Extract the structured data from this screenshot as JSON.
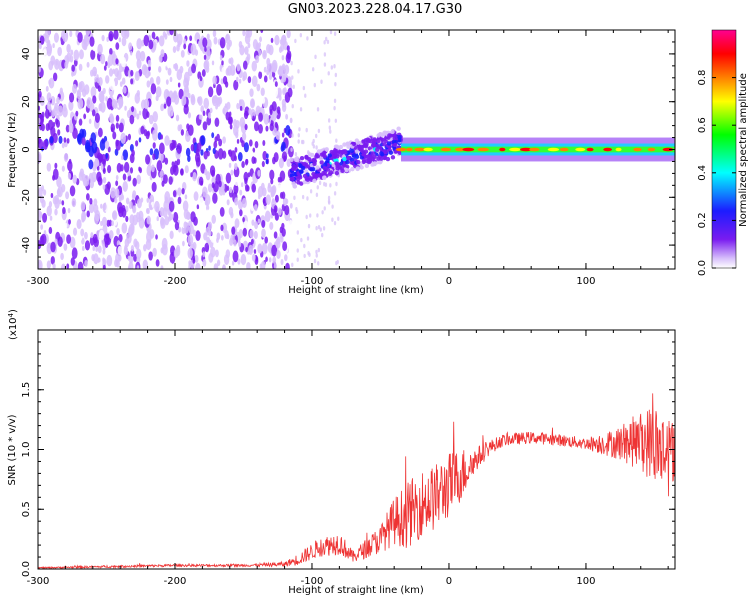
{
  "title": "GN03.2023.228.04.17.G30",
  "chart_data": [
    {
      "type": "heatmap",
      "xlabel": "Height of straight line (km)",
      "ylabel": "Frequency (Hz)",
      "xlim": [
        -300,
        165
      ],
      "ylim": [
        -50,
        50
      ],
      "xticks": [
        -300,
        -200,
        -100,
        0,
        100
      ],
      "yticks": [
        -40,
        -20,
        0,
        20,
        40
      ],
      "colorbar": {
        "label": "Normalized spectral amplitude",
        "range": [
          0,
          1
        ],
        "ticks": [
          0.0,
          0.2,
          0.4,
          0.6,
          0.8
        ],
        "colormap": [
          "#ffffff",
          "#c8a8f8",
          "#7a1cf0",
          "#2020ff",
          "#00ffff",
          "#00ff00",
          "#ffff00",
          "#ff7f00",
          "#ff0000",
          "#ff00a0"
        ]
      },
      "features": {
        "noisy_segment_x": [
          -300,
          -115
        ],
        "noise_gap_x": [
          -115,
          -80
        ],
        "ramp_from": [
          -115,
          -10
        ],
        "ramp_to": [
          -35,
          3
        ],
        "steady_line_freq": 0,
        "steady_line_x": [
          -35,
          165
        ]
      }
    },
    {
      "type": "line",
      "xlabel": "Height of straight line (km)",
      "ylabel": "SNR (10 * v/v)",
      "y_multiplier": "(x10",
      "y_multiplier_exp": "4",
      "y_multiplier_close": ")",
      "xlim": [
        -300,
        165
      ],
      "ylim": [
        0,
        2.0
      ],
      "xticks": [
        -300,
        -200,
        -100,
        0,
        100
      ],
      "yticks": [
        0.0,
        0.5,
        1.0,
        1.5
      ],
      "series": [
        {
          "color": "#ee3333",
          "x": [
            -300,
            -250,
            -200,
            -150,
            -120,
            -110,
            -95,
            -80,
            -70,
            -50,
            -40,
            -30,
            -20,
            -10,
            0,
            10,
            20,
            30,
            40,
            60,
            80,
            100,
            120,
            140,
            150,
            160,
            165
          ],
          "y": [
            0.01,
            0.02,
            0.03,
            0.03,
            0.04,
            0.08,
            0.18,
            0.22,
            0.1,
            0.25,
            0.4,
            0.45,
            0.55,
            0.6,
            0.7,
            0.8,
            0.92,
            1.02,
            1.08,
            1.1,
            1.08,
            1.05,
            1.05,
            1.07,
            1.05,
            0.95,
            1.0
          ],
          "noise": [
            0.005,
            0.01,
            0.01,
            0.01,
            0.02,
            0.05,
            0.08,
            0.1,
            0.05,
            0.12,
            0.2,
            0.28,
            0.28,
            0.28,
            0.28,
            0.22,
            0.1,
            0.06,
            0.05,
            0.05,
            0.05,
            0.05,
            0.12,
            0.25,
            0.35,
            0.35,
            0.25
          ]
        }
      ]
    }
  ]
}
